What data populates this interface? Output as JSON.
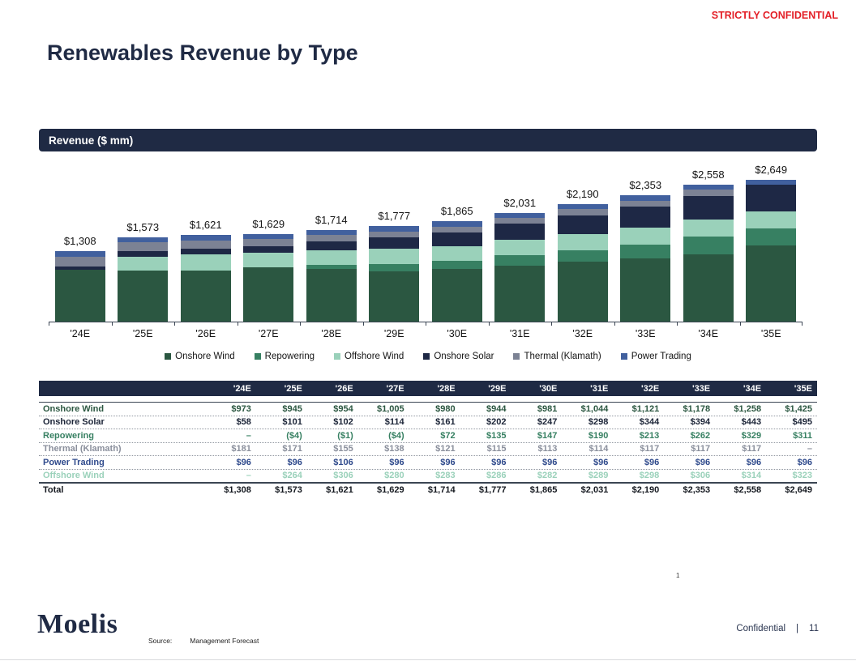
{
  "header": {
    "classification": "STRICTLY CONFIDENTIAL",
    "title": "Renewables Revenue by Type"
  },
  "section": {
    "banner": "Revenue ($ mm)"
  },
  "chart_data": {
    "type": "bar",
    "stacked": true,
    "title": "Revenue ($ mm)",
    "categories": [
      "'24E",
      "'25E",
      "'26E",
      "'27E",
      "'28E",
      "'29E",
      "'30E",
      "'31E",
      "'32E",
      "'33E",
      "'34E",
      "'35E"
    ],
    "total_labels": [
      "$1,308",
      "$1,573",
      "$1,621",
      "$1,629",
      "$1,714",
      "$1,777",
      "$1,865",
      "$2,031",
      "$2,190",
      "$2,353",
      "$2,558",
      "$2,649"
    ],
    "totals": [
      1308,
      1573,
      1621,
      1629,
      1714,
      1777,
      1865,
      2031,
      2190,
      2353,
      2558,
      2649
    ],
    "ylim": [
      0,
      2900
    ],
    "grid": false,
    "legend_position": "bottom",
    "series": [
      {
        "name": "Onshore Wind",
        "color": "#2B5741",
        "values": [
          973,
          945,
          954,
          1005,
          980,
          944,
          981,
          1044,
          1121,
          1178,
          1258,
          1425
        ]
      },
      {
        "name": "Repowering",
        "color": "#378062",
        "values": [
          0,
          -4,
          -1,
          -4,
          72,
          135,
          147,
          190,
          213,
          262,
          329,
          311
        ]
      },
      {
        "name": "Offshore Wind",
        "color": "#9AD1BA",
        "values": [
          0,
          264,
          306,
          280,
          283,
          286,
          282,
          289,
          298,
          306,
          314,
          323
        ]
      },
      {
        "name": "Onshore Solar",
        "color": "#1E2845",
        "values": [
          58,
          101,
          102,
          114,
          161,
          202,
          247,
          298,
          344,
          394,
          443,
          495
        ]
      },
      {
        "name": "Thermal (Klamath)",
        "color": "#7C8294",
        "values": [
          181,
          171,
          155,
          138,
          121,
          115,
          113,
          114,
          117,
          117,
          117,
          0
        ]
      },
      {
        "name": "Power Trading",
        "color": "#41609E",
        "values": [
          96,
          96,
          106,
          96,
          96,
          96,
          96,
          96,
          96,
          96,
          96,
          96
        ]
      }
    ]
  },
  "table": {
    "columns": [
      "",
      "'24E",
      "'25E",
      "'26E",
      "'27E",
      "'28E",
      "'29E",
      "'30E",
      "'31E",
      "'32E",
      "'33E",
      "'34E",
      "'35E"
    ],
    "rows": [
      {
        "key": "onshore-wind",
        "label": "Onshore Wind",
        "color": "#2B5741",
        "total": false,
        "values": [
          "$973",
          "$945",
          "$954",
          "$1,005",
          "$980",
          "$944",
          "$981",
          "$1,044",
          "$1,121",
          "$1,178",
          "$1,258",
          "$1,425"
        ]
      },
      {
        "key": "onshore-solar",
        "label": "Onshore Solar",
        "color": "#1B2437",
        "total": false,
        "values": [
          "$58",
          "$101",
          "$102",
          "$114",
          "$161",
          "$202",
          "$247",
          "$298",
          "$344",
          "$394",
          "$443",
          "$495"
        ]
      },
      {
        "key": "repowering",
        "label": "Repowering",
        "color": "#378062",
        "total": false,
        "values": [
          "–",
          "($4)",
          "($1)",
          "($4)",
          "$72",
          "$135",
          "$147",
          "$190",
          "$213",
          "$262",
          "$329",
          "$311"
        ]
      },
      {
        "key": "thermal-klamath",
        "label": "Thermal (Klamath)",
        "color": "#8A8F9C",
        "total": false,
        "values": [
          "$181",
          "$171",
          "$155",
          "$138",
          "$121",
          "$115",
          "$113",
          "$114",
          "$117",
          "$117",
          "$117",
          "–"
        ]
      },
      {
        "key": "power-trading",
        "label": "Power Trading",
        "color": "#2F4A8C",
        "total": false,
        "values": [
          "$96",
          "$96",
          "$106",
          "$96",
          "$96",
          "$96",
          "$96",
          "$96",
          "$96",
          "$96",
          "$96",
          "$96"
        ]
      },
      {
        "key": "offshore-wind",
        "label": "Offshore Wind",
        "color": "#9AD1BA",
        "total": false,
        "values": [
          "–",
          "$264",
          "$306",
          "$280",
          "$283",
          "$286",
          "$282",
          "$289",
          "$298",
          "$306",
          "$314",
          "$323"
        ]
      },
      {
        "key": "total",
        "label": "Total",
        "color": "#14181F",
        "total": true,
        "values": [
          "$1,308",
          "$1,573",
          "$1,621",
          "$1,629",
          "$1,714",
          "$1,777",
          "$1,865",
          "$2,031",
          "$2,190",
          "$2,353",
          "$2,558",
          "$2,649"
        ]
      }
    ]
  },
  "footer": {
    "footnote": "1",
    "logo": "Moelis",
    "source_label": "Source:",
    "source_value": "Management Forecast",
    "confidential": "Confidential",
    "divider": "|",
    "page_number": "11"
  },
  "colors": {
    "navy": "#1F2A44",
    "red": "#E31E26"
  }
}
